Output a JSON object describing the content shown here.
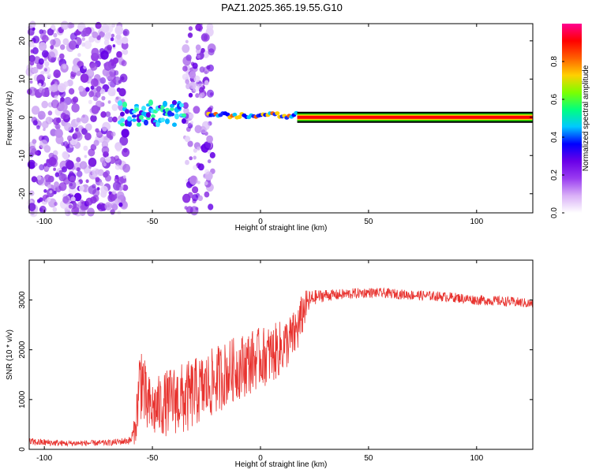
{
  "title": "PAZ1.2025.365.19.55.G10",
  "colors": {
    "blob": "#8a2be2",
    "snr_line": "#e8332f",
    "axis": "#000000"
  },
  "chart_data": [
    {
      "type": "heatmap",
      "xlabel": "Height of straight line (km)",
      "ylabel": "Frequency (Hz)",
      "xlim": [
        -107,
        126
      ],
      "ylim": [
        -25,
        24.5
      ],
      "xticks": [
        -100,
        -50,
        0,
        50,
        100
      ],
      "yticks": [
        -20,
        -10,
        0,
        10,
        20
      ],
      "xtick_labels": [
        "-100",
        "-50",
        "0",
        "50",
        "100"
      ],
      "ytick_labels": [
        "-20",
        "-10",
        "0",
        "10",
        "20"
      ],
      "scatter_regions": [
        {
          "x": [
            -107,
            -62
          ],
          "y": [
            -25,
            24.5
          ],
          "density": 0.55
        },
        {
          "x": [
            -35,
            -22
          ],
          "y": [
            -25,
            24.5
          ],
          "density": 0.5
        }
      ],
      "signal_band": [
        {
          "x": [
            -65,
            -35
          ],
          "y_center": 1,
          "y_halfwidth": 3,
          "level": 0.2
        },
        {
          "x": [
            -24,
            17
          ],
          "y_center": 0.5,
          "y_halfwidth": 1.5,
          "level": 0.45
        },
        {
          "x": [
            17,
            126
          ],
          "y_center": 0,
          "y_halfwidth": 0.8,
          "level": 0.95
        }
      ],
      "colorbar": {
        "label": "Normalized spectral amplitude",
        "range": [
          0.0,
          1.0
        ],
        "ticks": [
          0.0,
          0.2,
          0.4,
          0.6,
          0.8
        ],
        "tick_labels": [
          "0.0",
          "0.2",
          "0.4",
          "0.6",
          "0.8"
        ],
        "colors": [
          "#ffffff",
          "#d9b0f7",
          "#9a3cf0",
          "#6a00e8",
          "#0000ff",
          "#00c8ff",
          "#00ff80",
          "#7cff00",
          "#ffd000",
          "#ff6000",
          "#ff0000",
          "#ff0090"
        ]
      }
    },
    {
      "type": "line",
      "xlabel": "Height of straight line (km)",
      "ylabel": "SNR (10 * v/v)",
      "xlim": [
        -107,
        126
      ],
      "ylim": [
        0,
        3800
      ],
      "xticks": [
        -100,
        -50,
        0,
        50,
        100
      ],
      "yticks": [
        0,
        1000,
        2000,
        3000
      ],
      "xtick_labels": [
        "-100",
        "-50",
        "0",
        "50",
        "100"
      ],
      "ytick_labels": [
        "0",
        "1000",
        "2000",
        "3000"
      ],
      "series": [
        {
          "name": "SNR",
          "x": [
            -107,
            -90,
            -70,
            -60,
            -58,
            -56,
            -55,
            -53,
            -50,
            -45,
            -40,
            -35,
            -30,
            -25,
            -20,
            -15,
            -10,
            -5,
            0,
            5,
            10,
            15,
            18,
            20,
            22,
            25,
            30,
            35,
            40,
            50,
            60,
            70,
            80,
            90,
            100,
            110,
            120,
            126
          ],
          "y": [
            150,
            120,
            130,
            180,
            400,
            1300,
            1500,
            900,
            800,
            900,
            1000,
            1000,
            1150,
            1250,
            1400,
            1550,
            1650,
            1750,
            1850,
            1900,
            2050,
            2250,
            2500,
            2800,
            2950,
            3050,
            3100,
            3100,
            3120,
            3150,
            3130,
            3100,
            3080,
            3050,
            3000,
            2980,
            2950,
            2920
          ],
          "spread": [
            80,
            60,
            60,
            80,
            300,
            800,
            900,
            700,
            600,
            650,
            700,
            750,
            700,
            700,
            700,
            650,
            650,
            650,
            600,
            600,
            550,
            500,
            500,
            400,
            250,
            150,
            120,
            110,
            110,
            100,
            100,
            100,
            100,
            100,
            100,
            100,
            100,
            100
          ],
          "color": "#e8332f"
        }
      ]
    }
  ]
}
